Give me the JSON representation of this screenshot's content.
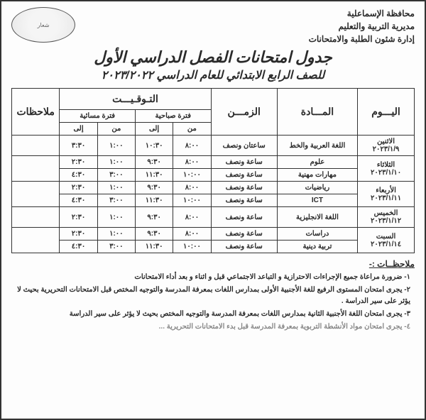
{
  "header": {
    "gov": "محافظة الإسماعلية",
    "dir": "مديرية التربية والتعليم",
    "dept": "إدارة شئون الطلبة والامتحانات",
    "logo": "شعار"
  },
  "titles": {
    "main": "جدول امتحانات الفصل الدراسي الأول",
    "sub": "للصف الرابع الابتدائي للعام الدراسي ٢٠٢٣/٢٠٢٢"
  },
  "table": {
    "head": {
      "day": "اليـــوم",
      "subject": "المـــادة",
      "duration": "الزمـــن",
      "timing": "التـوقـيـــت",
      "morning": "فترة صباحية",
      "evening": "فترة مسائية",
      "from": "من",
      "to": "إلى",
      "notes": "ملاحظات"
    },
    "rows": [
      {
        "day": "الاثنين",
        "date": "٢٠٢٣/١/٩",
        "cells": [
          {
            "subject": "اللغة العربية والخط",
            "duration": "ساعتان ونصف",
            "mf": "٨:٠٠",
            "mt": "١٠:٣٠",
            "ef": "١:٠٠",
            "et": "٣:٣٠"
          }
        ]
      },
      {
        "day": "الثلاثاء",
        "date": "٢٠٢٣/١/١٠",
        "cells": [
          {
            "subject": "علوم",
            "duration": "ساعة ونصف",
            "mf": "٨:٠٠",
            "mt": "٩:٣٠",
            "ef": "١:٠٠",
            "et": "٢:٣٠"
          },
          {
            "subject": "مهارات مهنية",
            "duration": "ساعة ونصف",
            "mf": "١٠:٠٠",
            "mt": "١١:٣٠",
            "ef": "٣:٠٠",
            "et": "٤:٣٠"
          }
        ]
      },
      {
        "day": "الأربعاء",
        "date": "٢٠٢٣/١/١١",
        "cells": [
          {
            "subject": "رياضيات",
            "duration": "ساعة ونصف",
            "mf": "٨:٠٠",
            "mt": "٩:٣٠",
            "ef": "١:٠٠",
            "et": "٢:٣٠"
          },
          {
            "subject": "ICT",
            "duration": "ساعة ونصف",
            "mf": "١٠:٠٠",
            "mt": "١١:٣٠",
            "ef": "٣:٠٠",
            "et": "٤:٣٠"
          }
        ]
      },
      {
        "day": "الخميس",
        "date": "٢٠٢٣/١/١٢",
        "cells": [
          {
            "subject": "اللغة الانجليزية",
            "duration": "ساعة ونصف",
            "mf": "٨:٠٠",
            "mt": "٩:٣٠",
            "ef": "١:٠٠",
            "et": "٢:٣٠"
          }
        ]
      },
      {
        "day": "السبت",
        "date": "٢٠٢٣/١/١٤",
        "cells": [
          {
            "subject": "دراسات",
            "duration": "ساعة ونصف",
            "mf": "٨:٠٠",
            "mt": "٩:٣٠",
            "ef": "١:٠٠",
            "et": "٢:٣٠"
          },
          {
            "subject": "تربية دينية",
            "duration": "ساعة ونصف",
            "mf": "١٠:٠٠",
            "mt": "١١:٣٠",
            "ef": "٣:٠٠",
            "et": "٤:٣٠"
          }
        ]
      }
    ]
  },
  "notes": {
    "title": "ملاحظــات :-",
    "items": [
      "١- ضرورة مراعاة جميع الإجراءات الاحترازية و التباعد الاجتماعي قبل و اثناء و بعد أداء الامتحانات",
      "٢- يجرى امتحان المستوى الرفيع للغة الأجنبية الأولى بمدارس اللغات بمعرفة المدرسة والتوجيه المختص قبل الامتحانات التحريرية بحيث لا يؤثر على سير الدراسة .",
      "٣- يجرى امتحان اللغة الأجنبية الثانية بمدارس اللغات بمعرفة المدرسة والتوجيه المختص بحيث لا يؤثر على سير الدراسة",
      "٤- يجرى امتحان مواد الأنشطة التربوية بمعرفة المدرسة قبل بدء الامتحانات التحريرية ..."
    ]
  }
}
